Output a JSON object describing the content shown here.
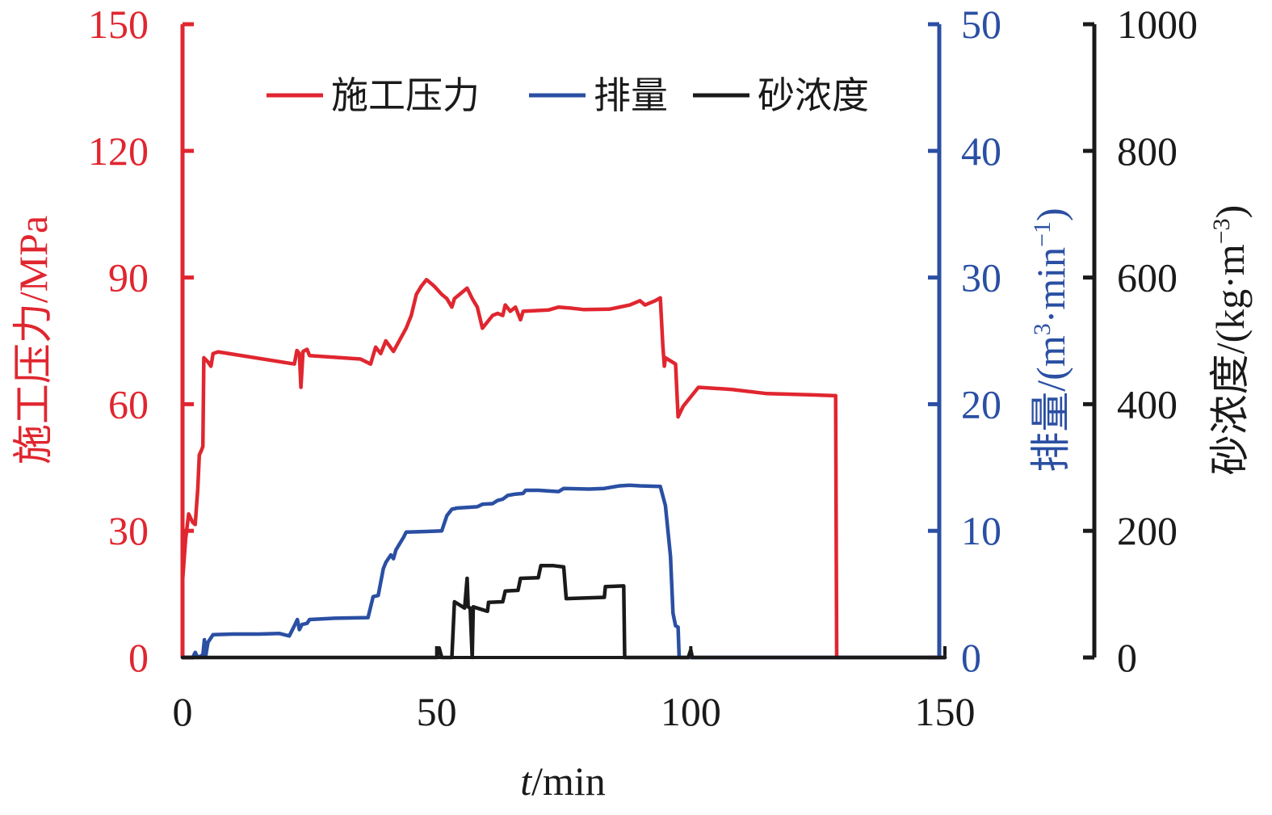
{
  "chart_data": {
    "type": "line",
    "xlabel_italic": "t",
    "xlabel_rest": "/min",
    "xlim": [
      0,
      150
    ],
    "xticks": [
      "0",
      "50",
      "100",
      "150"
    ],
    "axes": {
      "pressure": {
        "label": "施工压力/MPa",
        "ylim": [
          0,
          150
        ],
        "ticks": [
          "0",
          "30",
          "60",
          "90",
          "120",
          "150"
        ],
        "color": "#e0262f"
      },
      "rate": {
        "label_main": "排量/(m",
        "label_sup1": "3",
        "label_mid": "·min",
        "label_sup2": "−1",
        "label_end": ")",
        "ylim": [
          0,
          50
        ],
        "ticks": [
          "0",
          "10",
          "20",
          "30",
          "40",
          "50"
        ],
        "color": "#2a4fa3"
      },
      "sand": {
        "label_main": "砂浓度/(kg·m",
        "label_sup": "−3",
        "label_end": ")",
        "ylim": [
          0,
          1000
        ],
        "ticks": [
          "0",
          "200",
          "400",
          "600",
          "800",
          "1000"
        ],
        "color": "#1a1a1a"
      }
    },
    "legend": {
      "placement": "top-center"
    },
    "series": [
      {
        "name": "施工压力",
        "axis": "pressure",
        "color": "#e0262f",
        "points": [
          [
            0,
            18
          ],
          [
            0.6,
            28
          ],
          [
            1.2,
            34
          ],
          [
            2,
            32
          ],
          [
            2.5,
            31.5
          ],
          [
            3,
            40
          ],
          [
            3.3,
            48
          ],
          [
            3.7,
            49
          ],
          [
            4,
            50
          ],
          [
            4.2,
            71
          ],
          [
            5,
            70
          ],
          [
            5.6,
            69
          ],
          [
            6,
            72
          ],
          [
            7,
            72.4
          ],
          [
            22,
            69.5
          ],
          [
            22.5,
            72.7
          ],
          [
            23,
            72
          ],
          [
            23.3,
            64
          ],
          [
            23.7,
            72.5
          ],
          [
            24.5,
            73
          ],
          [
            25,
            71.5
          ],
          [
            35,
            70.7
          ],
          [
            37,
            69.5
          ],
          [
            38,
            73.5
          ],
          [
            39,
            72
          ],
          [
            40,
            75
          ],
          [
            41.5,
            72.5
          ],
          [
            44,
            78
          ],
          [
            45,
            81
          ],
          [
            46,
            86
          ],
          [
            47,
            88
          ],
          [
            48,
            89.5
          ],
          [
            49.5,
            88
          ],
          [
            51,
            86
          ],
          [
            52,
            85
          ],
          [
            53,
            83
          ],
          [
            53.5,
            85
          ],
          [
            54.5,
            86
          ],
          [
            56,
            87.5
          ],
          [
            57,
            85
          ],
          [
            58,
            83
          ],
          [
            59,
            78
          ],
          [
            60,
            79.5
          ],
          [
            61,
            81
          ],
          [
            62,
            81.5
          ],
          [
            63,
            81
          ],
          [
            63.5,
            83.5
          ],
          [
            64.5,
            82
          ],
          [
            65.5,
            83
          ],
          [
            66.5,
            80
          ],
          [
            67,
            82
          ],
          [
            72,
            82.3
          ],
          [
            74,
            83
          ],
          [
            76,
            82.8
          ],
          [
            79,
            82.4
          ],
          [
            84,
            82.5
          ],
          [
            88,
            83.5
          ],
          [
            90,
            84.5
          ],
          [
            91,
            83.5
          ],
          [
            93,
            84.5
          ],
          [
            94,
            85.2
          ],
          [
            94.5,
            74
          ],
          [
            94.8,
            69
          ],
          [
            95,
            71
          ],
          [
            97,
            69.5
          ],
          [
            97.5,
            57
          ],
          [
            98.5,
            59.5
          ],
          [
            101.5,
            64
          ],
          [
            108,
            63.5
          ],
          [
            115,
            62.5
          ],
          [
            124,
            62.2
          ],
          [
            128.5,
            62
          ],
          [
            128.7,
            0
          ],
          [
            150,
            0
          ]
        ]
      },
      {
        "name": "排量",
        "axis": "rate",
        "color": "#2a4fa3",
        "points": [
          [
            0,
            0
          ],
          [
            2,
            0
          ],
          [
            2.5,
            0.4
          ],
          [
            3,
            0
          ],
          [
            4,
            0.2
          ],
          [
            4.3,
            1.4
          ],
          [
            4.6,
            0.2
          ],
          [
            5,
            1.2
          ],
          [
            6,
            1.8
          ],
          [
            10,
            1.85
          ],
          [
            15,
            1.85
          ],
          [
            19,
            1.9
          ],
          [
            21,
            1.7
          ],
          [
            22,
            2.5
          ],
          [
            22.6,
            3
          ],
          [
            23,
            2.2
          ],
          [
            23.5,
            2.6
          ],
          [
            24.5,
            2.7
          ],
          [
            25,
            3
          ],
          [
            30,
            3.1
          ],
          [
            36.5,
            3.15
          ],
          [
            37.5,
            4.8
          ],
          [
            38.5,
            4.9
          ],
          [
            39.5,
            7
          ],
          [
            40,
            7.5
          ],
          [
            41,
            8.1
          ],
          [
            41.5,
            7.8
          ],
          [
            42,
            8.5
          ],
          [
            43.5,
            9.5
          ],
          [
            44,
            9.9
          ],
          [
            48,
            9.95
          ],
          [
            51,
            10
          ],
          [
            52,
            11.2
          ],
          [
            53,
            11.7
          ],
          [
            54,
            11.8
          ],
          [
            58,
            11.9
          ],
          [
            59,
            12.1
          ],
          [
            61,
            12.15
          ],
          [
            62,
            12.4
          ],
          [
            63,
            12.5
          ],
          [
            64,
            12.8
          ],
          [
            65.5,
            12.9
          ],
          [
            67,
            12.95
          ],
          [
            67.5,
            13.2
          ],
          [
            70,
            13.2
          ],
          [
            74,
            13.1
          ],
          [
            75,
            13.35
          ],
          [
            80,
            13.3
          ],
          [
            83,
            13.35
          ],
          [
            86,
            13.55
          ],
          [
            88,
            13.6
          ],
          [
            90,
            13.55
          ],
          [
            94,
            13.5
          ],
          [
            95,
            12
          ],
          [
            96,
            8
          ],
          [
            96.5,
            3.5
          ],
          [
            97,
            2.5
          ],
          [
            97.5,
            2.4
          ],
          [
            97.7,
            0.1
          ],
          [
            98,
            0
          ],
          [
            150,
            0
          ]
        ]
      },
      {
        "name": "砂浓度",
        "axis": "sand",
        "color": "#1a1a1a",
        "points": [
          [
            0,
            0
          ],
          [
            50,
            0
          ],
          [
            50.5,
            15
          ],
          [
            51,
            0
          ],
          [
            53,
            0
          ],
          [
            53.5,
            88
          ],
          [
            55.5,
            78
          ],
          [
            56,
            125
          ],
          [
            56.2,
            80
          ],
          [
            56.6,
            78
          ],
          [
            57,
            0
          ],
          [
            57.2,
            80
          ],
          [
            60,
            73
          ],
          [
            60.2,
            87
          ],
          [
            63,
            88
          ],
          [
            63.5,
            105
          ],
          [
            66,
            106
          ],
          [
            66.5,
            125
          ],
          [
            70,
            126
          ],
          [
            70.5,
            145
          ],
          [
            73,
            145
          ],
          [
            75,
            143
          ],
          [
            75.5,
            93
          ],
          [
            83,
            95
          ],
          [
            83.2,
            112
          ],
          [
            86.8,
            113
          ],
          [
            87,
            0
          ],
          [
            99.5,
            0
          ],
          [
            100,
            12
          ],
          [
            100.3,
            0
          ],
          [
            150,
            0
          ]
        ]
      }
    ]
  }
}
